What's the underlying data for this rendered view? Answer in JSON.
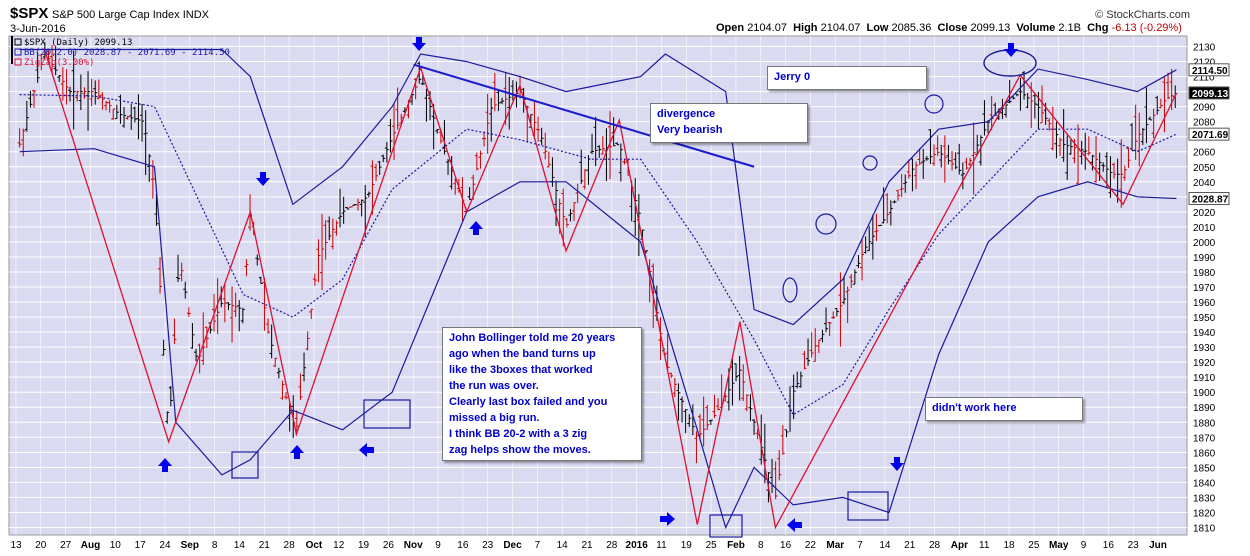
{
  "header": {
    "ticker": "$SPX",
    "name": "S&P 500 Large Cap Index",
    "exchange": "INDX",
    "date": "3-Jun-2016",
    "credit": "© StockCharts.com",
    "open_label": "Open",
    "open": "2104.07",
    "high_label": "High",
    "high": "2104.07",
    "low_label": "Low",
    "low": "2085.36",
    "close_label": "Close",
    "close": "2099.13",
    "volume_label": "Volume",
    "volume": "2.1B",
    "chg_label": "Chg",
    "chg": "-6.13 (-0.29%)"
  },
  "legend": [
    {
      "text": "$SPX (Daily) 2099.13",
      "color": "#000000"
    },
    {
      "text": "BB(20,2.0) 2028.87 - 2071.69 - 2114.50",
      "color": "#1a1aa0"
    },
    {
      "text": "ZigZag(3.00%)",
      "color": "#dd1133"
    }
  ],
  "annotations": {
    "bollinger": [
      "John Bollinger told me 20 years",
      "ago when the band turns up",
      "like the 3boxes that worked",
      "the run was over.",
      "Clearly last box failed and you",
      "missed a big run.",
      "I think BB 20-2 with a 3 zig",
      "zag helps show the moves."
    ],
    "divergence": [
      "divergence",
      "Very bearish"
    ],
    "jerry": "Jerry 0",
    "didnt": "didn't work here"
  },
  "colors": {
    "plot_bg": "#dadaf0",
    "grid": "#ffffff",
    "price": "#000000",
    "bb": "#1a1aa0",
    "zigzag": "#dd1133",
    "arrows": "#0000ee"
  },
  "chart_data": {
    "type": "line",
    "title": "$SPX S&P 500 Large Cap Index",
    "y_ticks": [
      1810,
      1820,
      1830,
      1840,
      1850,
      1860,
      1870,
      1880,
      1890,
      1900,
      1910,
      1920,
      1930,
      1940,
      1950,
      1960,
      1970,
      1980,
      1990,
      2000,
      2010,
      2020,
      2030,
      2040,
      2050,
      2060,
      2070,
      2080,
      2090,
      2100,
      2110,
      2120,
      2130
    ],
    "ylim": [
      1805,
      2137
    ],
    "price_tags": [
      {
        "label": "2114.50",
        "value": 2114.5,
        "fill": "#ffffff"
      },
      {
        "label": "2099.13",
        "value": 2099.13,
        "fill": "#000000"
      },
      {
        "label": "2071.69",
        "value": 2071.69,
        "fill": "#ffffff"
      },
      {
        "label": "2028.87",
        "value": 2028.87,
        "fill": "#ffffff"
      }
    ],
    "x_ticks": [
      "13",
      "20",
      "27",
      "Aug",
      "10",
      "17",
      "24",
      "Sep",
      "8",
      "14",
      "21",
      "28",
      "Oct",
      "12",
      "19",
      "26",
      "Nov",
      "9",
      "16",
      "23",
      "Dec",
      "7",
      "14",
      "21",
      "28",
      "2016",
      "11",
      "19",
      "25",
      "Feb",
      "8",
      "16",
      "22",
      "Mar",
      "7",
      "14",
      "21",
      "28",
      "Apr",
      "11",
      "18",
      "25",
      "May",
      "9",
      "16",
      "23",
      "Jun"
    ],
    "zigzag": {
      "x": [
        "2015-07-20",
        "2015-08-24",
        "2015-09-16",
        "2015-09-29",
        "2015-11-03",
        "2015-11-16",
        "2015-12-01",
        "2015-12-14",
        "2015-12-29",
        "2016-01-20",
        "2016-02-01",
        "2016-02-11",
        "2016-04-20",
        "2016-05-19",
        "2016-06-03"
      ],
      "y": [
        2128,
        1867,
        2020,
        1872,
        2116,
        2020,
        2104,
        1994,
        2081,
        1812,
        1947,
        1810,
        2111,
        2025,
        2099
      ]
    },
    "series": [
      {
        "name": "$SPX (Daily)",
        "x": [
          "2015-07-13",
          "2015-07-20",
          "2015-07-27",
          "2015-08-03",
          "2015-08-10",
          "2015-08-17",
          "2015-08-20",
          "2015-08-24",
          "2015-08-27",
          "2015-09-01",
          "2015-09-08",
          "2015-09-14",
          "2015-09-16",
          "2015-09-21",
          "2015-09-28",
          "2015-09-29",
          "2015-10-05",
          "2015-10-12",
          "2015-10-19",
          "2015-10-26",
          "2015-11-03",
          "2015-11-09",
          "2015-11-16",
          "2015-11-23",
          "2015-12-01",
          "2015-12-07",
          "2015-12-14",
          "2015-12-21",
          "2015-12-29",
          "2016-01-04",
          "2016-01-11",
          "2016-01-20",
          "2016-01-25",
          "2016-02-01",
          "2016-02-05",
          "2016-02-11",
          "2016-02-16",
          "2016-02-22",
          "2016-03-01",
          "2016-03-07",
          "2016-03-14",
          "2016-03-21",
          "2016-03-28",
          "2016-04-04",
          "2016-04-11",
          "2016-04-20",
          "2016-04-25",
          "2016-05-02",
          "2016-05-09",
          "2016-05-16",
          "2016-05-19",
          "2016-05-23",
          "2016-05-31",
          "2016-06-03"
        ],
        "values": [
          2065,
          2126,
          2100,
          2100,
          2085,
          2080,
          2035,
          1870,
          1990,
          1920,
          1960,
          1955,
          2020,
          1940,
          1880,
          1875,
          1990,
          2020,
          2030,
          2070,
          2110,
          2065,
          2020,
          2090,
          2100,
          2070,
          2010,
          2060,
          2065,
          2015,
          1920,
          1870,
          1885,
          1915,
          1880,
          1830,
          1900,
          1930,
          1960,
          1995,
          2020,
          2050,
          2060,
          2045,
          2080,
          2100,
          2090,
          2065,
          2060,
          2045,
          2045,
          2070,
          2095,
          2099
        ]
      },
      {
        "name": "BB upper",
        "x": [
          "2015-07-13",
          "2015-08-03",
          "2015-08-20",
          "2015-08-26",
          "2015-09-08",
          "2015-09-16",
          "2015-09-28",
          "2015-10-12",
          "2015-10-26",
          "2015-11-03",
          "2015-11-16",
          "2015-12-01",
          "2015-12-14",
          "2016-01-04",
          "2016-01-11",
          "2016-01-28",
          "2016-02-05",
          "2016-02-16",
          "2016-03-01",
          "2016-03-14",
          "2016-03-28",
          "2016-04-11",
          "2016-04-25",
          "2016-05-09",
          "2016-05-23",
          "2016-06-03"
        ],
        "values": [
          2128,
          2128,
          2128,
          2128,
          2128,
          2110,
          2025,
          2050,
          2090,
          2125,
          2120,
          2110,
          2100,
          2110,
          2125,
          2100,
          1955,
          1945,
          1975,
          2040,
          2075,
          2080,
          2115,
          2108,
          2100,
          2114.5
        ]
      },
      {
        "name": "BB middle",
        "x": [
          "2015-07-13",
          "2015-08-03",
          "2015-08-20",
          "2015-09-01",
          "2015-09-14",
          "2015-09-28",
          "2015-10-12",
          "2015-10-26",
          "2015-11-16",
          "2015-12-01",
          "2015-12-21",
          "2016-01-04",
          "2016-01-20",
          "2016-02-05",
          "2016-02-16",
          "2016-03-01",
          "2016-03-14",
          "2016-03-28",
          "2016-04-11",
          "2016-04-25",
          "2016-05-09",
          "2016-05-23",
          "2016-06-03"
        ],
        "values": [
          2098,
          2097,
          2090,
          2030,
          1965,
          1950,
          1975,
          2035,
          2075,
          2068,
          2055,
          2055,
          2000,
          1935,
          1885,
          1905,
          1955,
          2005,
          2040,
          2075,
          2075,
          2060,
          2071.69
        ]
      },
      {
        "name": "BB lower",
        "x": [
          "2015-07-13",
          "2015-08-03",
          "2015-08-20",
          "2015-08-26",
          "2015-09-08",
          "2015-09-16",
          "2015-09-28",
          "2015-10-12",
          "2015-10-26",
          "2015-11-16",
          "2015-12-01",
          "2015-12-14",
          "2016-01-04",
          "2016-01-20",
          "2016-01-28",
          "2016-02-05",
          "2016-02-16",
          "2016-03-01",
          "2016-03-14",
          "2016-03-28",
          "2016-04-11",
          "2016-04-25",
          "2016-05-09",
          "2016-05-23",
          "2016-06-03"
        ],
        "values": [
          2060,
          2062,
          2050,
          1880,
          1845,
          1855,
          1888,
          1875,
          1900,
          2020,
          2040,
          2040,
          2000,
          1875,
          1810,
          1850,
          1825,
          1830,
          1820,
          1925,
          2000,
          2030,
          2040,
          2030,
          2028.87
        ]
      }
    ],
    "trendline": {
      "x": [
        "2015-11-01",
        "2016-02-05"
      ],
      "y": [
        2118,
        2050
      ]
    },
    "up_arrows": [
      "2015-08-24",
      "2015-09-29",
      "2015-11-16"
    ],
    "down_arrows": [
      "2015-09-16",
      "2015-11-03",
      "2016-04-20",
      "2016-03-21"
    ],
    "right_arrows": [
      "2016-01-20"
    ],
    "left_arrows": [
      "2015-10-19",
      "2016-02-16"
    ]
  }
}
